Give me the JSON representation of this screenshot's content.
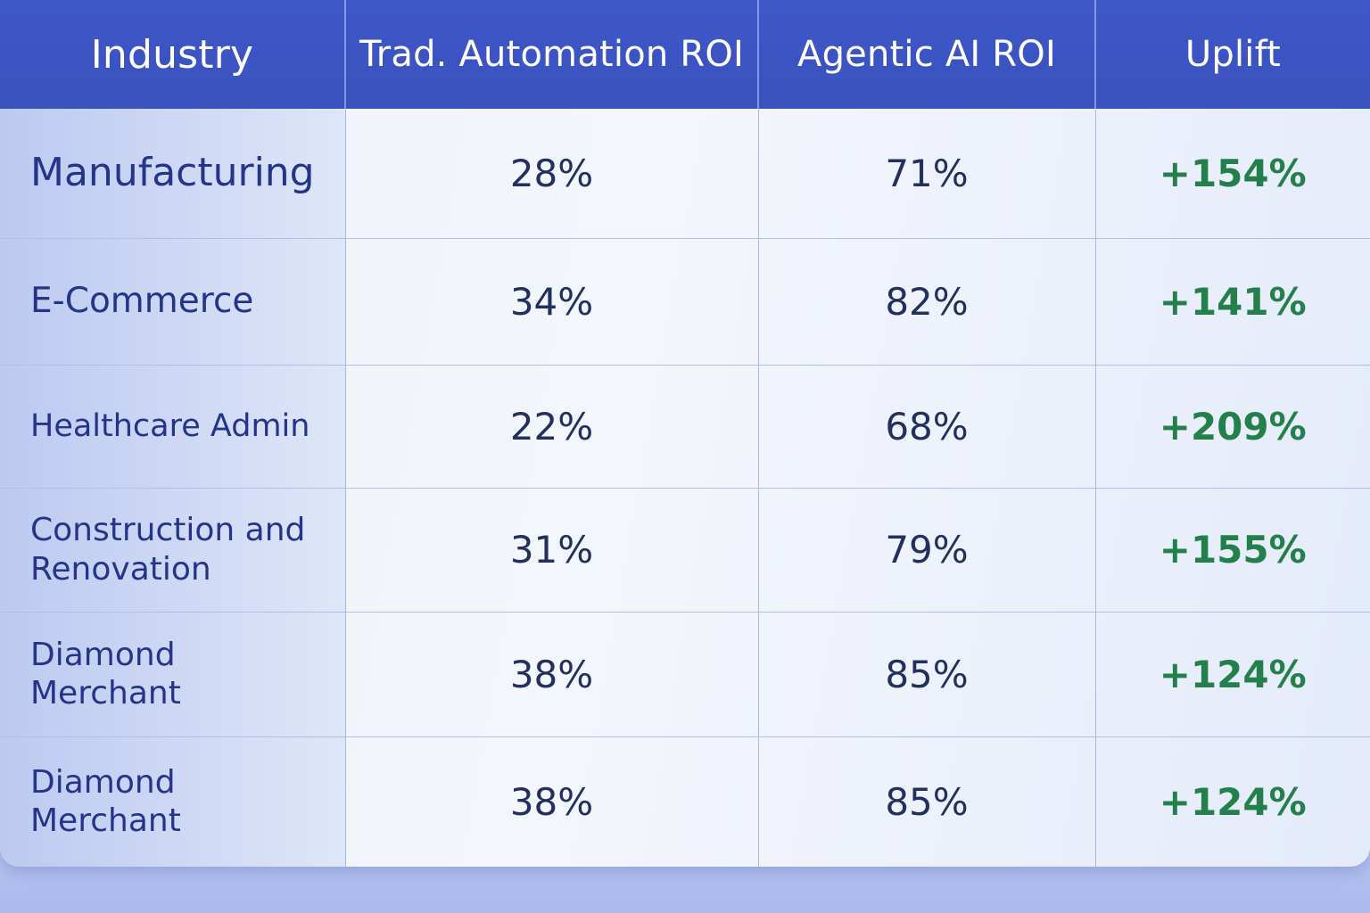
{
  "chart_data": {
    "type": "table",
    "columns": [
      "Industry",
      "Trad. Automation ROI",
      "Agentic AI ROI",
      "Uplift"
    ],
    "rows": [
      {
        "industry": "Manufacturing",
        "traditional": "28%",
        "agentic": "71%",
        "uplift": "+154%"
      },
      {
        "industry": "E-Commerce",
        "traditional": "34%",
        "agentic": "82%",
        "uplift": "+141%"
      },
      {
        "industry": "Healthcare Admin",
        "traditional": "22%",
        "agentic": "68%",
        "uplift": "+209%"
      },
      {
        "industry": "Construction and Renovation",
        "traditional": "31%",
        "agentic": "79%",
        "uplift": "+155%"
      },
      {
        "industry": "Diamond Merchant",
        "traditional": "38%",
        "agentic": "85%",
        "uplift": "+124%"
      },
      {
        "industry": "Diamond Merchant",
        "traditional": "38%",
        "agentic": "85%",
        "uplift": "+124%"
      }
    ],
    "colors": {
      "header_bg": "#3f58c8",
      "header_text": "#ffffff",
      "industry_text": "#24348a",
      "value_text": "#23305e",
      "uplift_text": "#23804a"
    }
  }
}
